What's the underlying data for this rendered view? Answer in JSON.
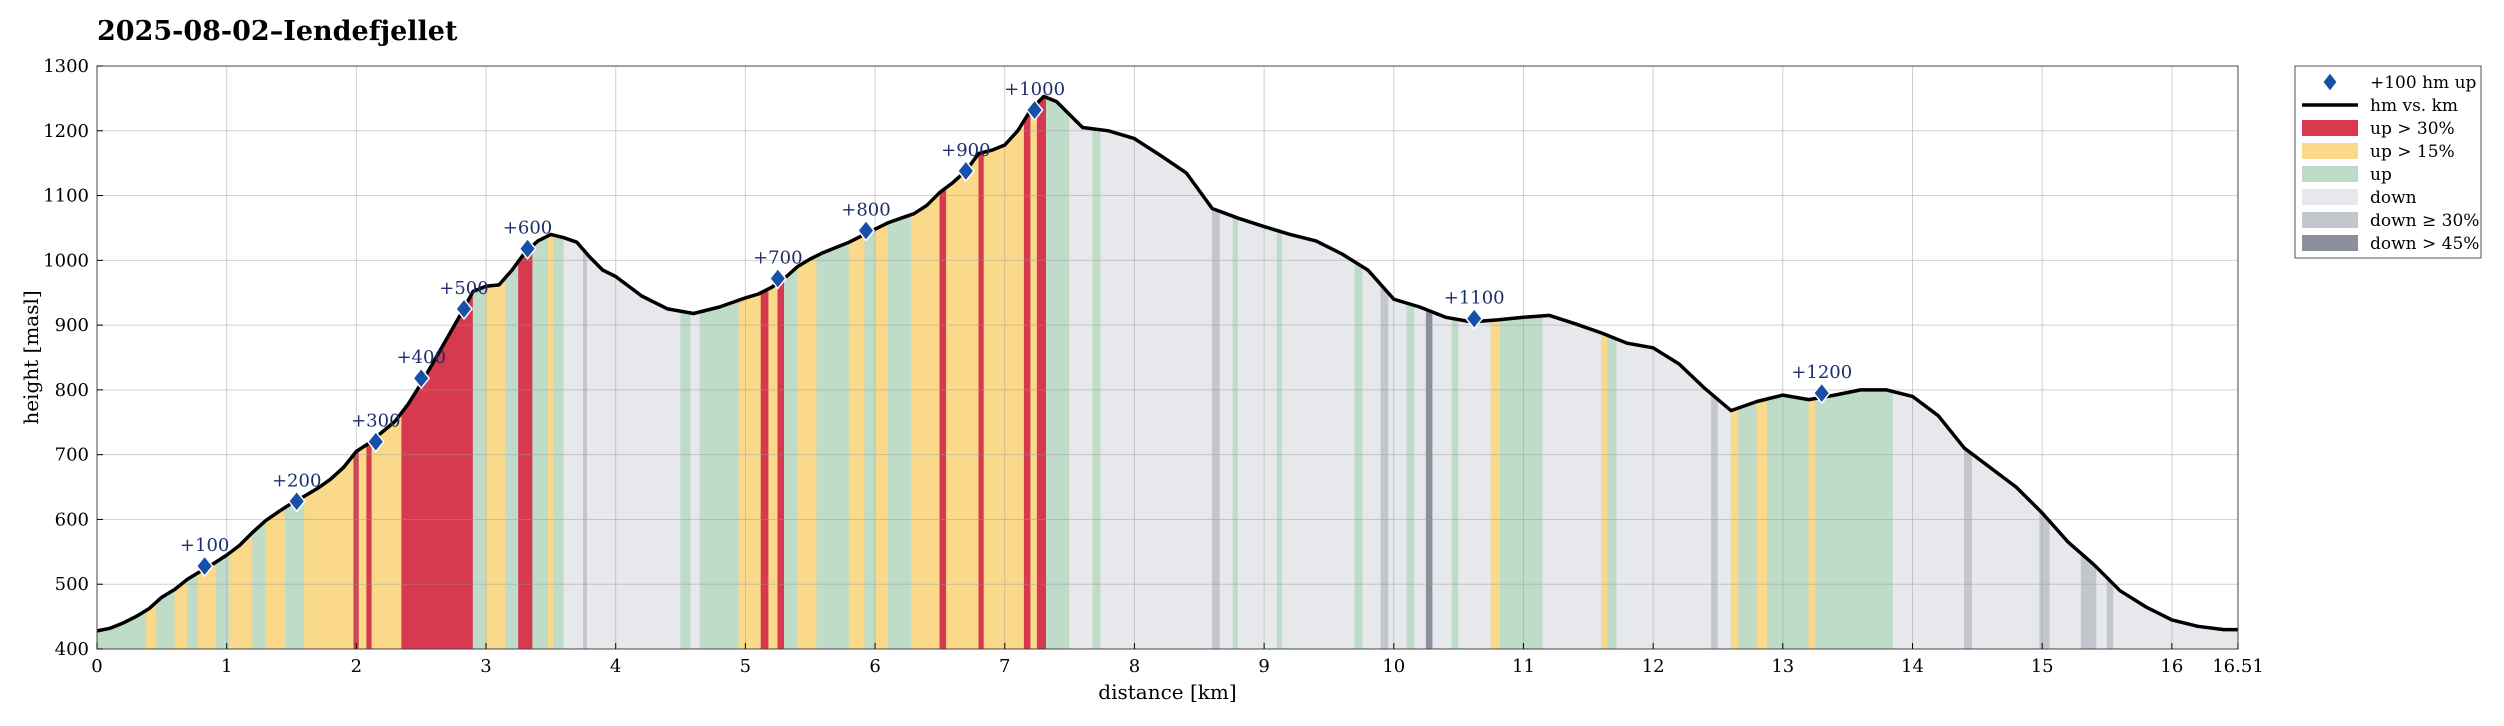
{
  "chart_data": {
    "type": "area",
    "title": "2025-08-02–Iendefjellet",
    "xlabel": "distance [km]",
    "ylabel": "height [masl]",
    "xlim": [
      0,
      16.51
    ],
    "ylim": [
      400,
      1300
    ],
    "grid": true,
    "legend_placement": "outside-top-right",
    "x_ticks": [
      "0",
      "1",
      "2",
      "3",
      "4",
      "5",
      "6",
      "7",
      "8",
      "9",
      "10",
      "11",
      "12",
      "13",
      "14",
      "15",
      "16",
      "16.51"
    ],
    "x_tick_values": [
      0,
      1,
      2,
      3,
      4,
      5,
      6,
      7,
      8,
      9,
      10,
      11,
      12,
      13,
      14,
      15,
      16,
      16.51
    ],
    "y_ticks": [
      400,
      500,
      600,
      700,
      800,
      900,
      1000,
      1100,
      1200,
      1300
    ],
    "legend": [
      {
        "key": "marker",
        "label": "+100 hm up",
        "color": "#1650a8"
      },
      {
        "key": "line",
        "label": "hm vs. km",
        "color": "#000000"
      },
      {
        "key": "up30",
        "label": "up > 30%",
        "color": "#d7394f"
      },
      {
        "key": "up15",
        "label": "up > 15%",
        "color": "#fbd98a"
      },
      {
        "key": "up",
        "label": "up",
        "color": "#bedcc8"
      },
      {
        "key": "down",
        "label": "down",
        "color": "#e6e8eb"
      },
      {
        "key": "down30",
        "label": "down ≥ 30%",
        "color": "#c3c6cd"
      },
      {
        "key": "down45",
        "label": "down > 45%",
        "color": "#8c909c"
      }
    ],
    "profile": {
      "x": [
        0,
        0.1,
        0.2,
        0.3,
        0.4,
        0.5,
        0.6,
        0.7,
        0.8,
        0.9,
        1.0,
        1.1,
        1.2,
        1.3,
        1.4,
        1.5,
        1.6,
        1.7,
        1.8,
        1.9,
        2.0,
        2.1,
        2.2,
        2.3,
        2.4,
        2.5,
        2.6,
        2.7,
        2.8,
        2.9,
        3.0,
        3.1,
        3.2,
        3.3,
        3.4,
        3.5,
        3.6,
        3.7,
        3.8,
        3.9,
        4.0,
        4.2,
        4.4,
        4.6,
        4.8,
        5.0,
        5.1,
        5.2,
        5.3,
        5.4,
        5.5,
        5.6,
        5.7,
        5.8,
        5.9,
        6.0,
        6.1,
        6.2,
        6.3,
        6.4,
        6.5,
        6.6,
        6.7,
        6.8,
        6.9,
        7.0,
        7.1,
        7.2,
        7.3,
        7.4,
        7.5,
        7.6,
        7.8,
        8.0,
        8.2,
        8.4,
        8.6,
        8.8,
        9.0,
        9.2,
        9.4,
        9.6,
        9.8,
        10.0,
        10.2,
        10.4,
        10.6,
        10.8,
        11.0,
        11.2,
        11.4,
        11.6,
        11.8,
        12.0,
        12.2,
        12.4,
        12.6,
        12.8,
        13.0,
        13.2,
        13.4,
        13.6,
        13.8,
        14.0,
        14.2,
        14.4,
        14.6,
        14.8,
        15.0,
        15.2,
        15.4,
        15.6,
        15.8,
        16.0,
        16.2,
        16.4,
        16.51
      ],
      "y": [
        428,
        432,
        440,
        450,
        462,
        480,
        492,
        508,
        520,
        532,
        545,
        560,
        580,
        598,
        612,
        625,
        636,
        648,
        662,
        680,
        705,
        718,
        735,
        752,
        778,
        810,
        845,
        880,
        915,
        952,
        960,
        962,
        985,
        1012,
        1030,
        1040,
        1035,
        1028,
        1005,
        985,
        975,
        945,
        925,
        918,
        928,
        942,
        948,
        958,
        972,
        990,
        1002,
        1012,
        1020,
        1028,
        1038,
        1048,
        1058,
        1065,
        1072,
        1085,
        1105,
        1120,
        1138,
        1165,
        1170,
        1178,
        1200,
        1232,
        1253,
        1245,
        1225,
        1205,
        1200,
        1188,
        1162,
        1135,
        1080,
        1065,
        1052,
        1040,
        1030,
        1010,
        985,
        940,
        928,
        912,
        905,
        908,
        912,
        915,
        902,
        888,
        872,
        865,
        840,
        802,
        768,
        782,
        792,
        785,
        792,
        800,
        800,
        790,
        760,
        710,
        680,
        650,
        610,
        565,
        530,
        490,
        465,
        445,
        435,
        430,
        430
      ],
      "bands": [
        {
          "from": 0,
          "to": 0.38,
          "type": "up"
        },
        {
          "from": 0.38,
          "to": 0.46,
          "type": "up15"
        },
        {
          "from": 0.46,
          "to": 0.6,
          "type": "up"
        },
        {
          "from": 0.6,
          "to": 0.7,
          "type": "up15"
        },
        {
          "from": 0.7,
          "to": 0.78,
          "type": "up"
        },
        {
          "from": 0.78,
          "to": 0.92,
          "type": "up15"
        },
        {
          "from": 0.92,
          "to": 1.02,
          "type": "up"
        },
        {
          "from": 1.02,
          "to": 1.2,
          "type": "up15"
        },
        {
          "from": 1.2,
          "to": 1.3,
          "type": "up"
        },
        {
          "from": 1.3,
          "to": 1.45,
          "type": "up15"
        },
        {
          "from": 1.45,
          "to": 1.6,
          "type": "up"
        },
        {
          "from": 1.6,
          "to": 1.98,
          "type": "up15"
        },
        {
          "from": 1.98,
          "to": 2.02,
          "type": "up30"
        },
        {
          "from": 2.02,
          "to": 2.08,
          "type": "up15"
        },
        {
          "from": 2.08,
          "to": 2.12,
          "type": "up30"
        },
        {
          "from": 2.12,
          "to": 2.35,
          "type": "up15"
        },
        {
          "from": 2.35,
          "to": 2.9,
          "type": "up30"
        },
        {
          "from": 2.9,
          "to": 3.0,
          "type": "up"
        },
        {
          "from": 3.0,
          "to": 3.15,
          "type": "up15"
        },
        {
          "from": 3.15,
          "to": 3.25,
          "type": "up"
        },
        {
          "from": 3.25,
          "to": 3.36,
          "type": "up30"
        },
        {
          "from": 3.36,
          "to": 3.48,
          "type": "up"
        },
        {
          "from": 3.48,
          "to": 3.52,
          "type": "up15"
        },
        {
          "from": 3.52,
          "to": 3.6,
          "type": "up"
        },
        {
          "from": 3.6,
          "to": 3.75,
          "type": "down"
        },
        {
          "from": 3.75,
          "to": 3.78,
          "type": "down30"
        },
        {
          "from": 3.78,
          "to": 4.5,
          "type": "down"
        },
        {
          "from": 4.5,
          "to": 4.58,
          "type": "up"
        },
        {
          "from": 4.58,
          "to": 4.65,
          "type": "down"
        },
        {
          "from": 4.65,
          "to": 4.95,
          "type": "up"
        },
        {
          "from": 4.95,
          "to": 5.12,
          "type": "up15"
        },
        {
          "from": 5.12,
          "to": 5.18,
          "type": "up30"
        },
        {
          "from": 5.18,
          "to": 5.25,
          "type": "up15"
        },
        {
          "from": 5.25,
          "to": 5.3,
          "type": "up30"
        },
        {
          "from": 5.3,
          "to": 5.4,
          "type": "up"
        },
        {
          "from": 5.4,
          "to": 5.55,
          "type": "up15"
        },
        {
          "from": 5.55,
          "to": 5.8,
          "type": "up"
        },
        {
          "from": 5.8,
          "to": 5.92,
          "type": "up15"
        },
        {
          "from": 5.92,
          "to": 6.0,
          "type": "up"
        },
        {
          "from": 6.0,
          "to": 6.1,
          "type": "up15"
        },
        {
          "from": 6.1,
          "to": 6.28,
          "type": "up"
        },
        {
          "from": 6.28,
          "to": 6.5,
          "type": "up15"
        },
        {
          "from": 6.5,
          "to": 6.55,
          "type": "up30"
        },
        {
          "from": 6.55,
          "to": 6.8,
          "type": "up15"
        },
        {
          "from": 6.8,
          "to": 6.84,
          "type": "up30"
        },
        {
          "from": 6.84,
          "to": 7.15,
          "type": "up15"
        },
        {
          "from": 7.15,
          "to": 7.2,
          "type": "up30"
        },
        {
          "from": 7.2,
          "to": 7.25,
          "type": "up15"
        },
        {
          "from": 7.25,
          "to": 7.32,
          "type": "up30"
        },
        {
          "from": 7.32,
          "to": 7.5,
          "type": "up"
        },
        {
          "from": 7.5,
          "to": 7.68,
          "type": "down"
        },
        {
          "from": 7.68,
          "to": 7.74,
          "type": "up"
        },
        {
          "from": 7.74,
          "to": 8.6,
          "type": "down"
        },
        {
          "from": 8.6,
          "to": 8.66,
          "type": "down30"
        },
        {
          "from": 8.66,
          "to": 8.76,
          "type": "down"
        },
        {
          "from": 8.76,
          "to": 8.8,
          "type": "up"
        },
        {
          "from": 8.8,
          "to": 9.1,
          "type": "down"
        },
        {
          "from": 9.1,
          "to": 9.14,
          "type": "up"
        },
        {
          "from": 9.14,
          "to": 9.7,
          "type": "down"
        },
        {
          "from": 9.7,
          "to": 9.76,
          "type": "up"
        },
        {
          "from": 9.76,
          "to": 9.9,
          "type": "down"
        },
        {
          "from": 9.9,
          "to": 9.96,
          "type": "down30"
        },
        {
          "from": 9.96,
          "to": 10.1,
          "type": "down"
        },
        {
          "from": 10.1,
          "to": 10.16,
          "type": "up"
        },
        {
          "from": 10.16,
          "to": 10.25,
          "type": "down"
        },
        {
          "from": 10.25,
          "to": 10.3,
          "type": "down45"
        },
        {
          "from": 10.3,
          "to": 10.45,
          "type": "down"
        },
        {
          "from": 10.45,
          "to": 10.5,
          "type": "up"
        },
        {
          "from": 10.5,
          "to": 10.75,
          "type": "down"
        },
        {
          "from": 10.75,
          "to": 10.82,
          "type": "up15"
        },
        {
          "from": 10.82,
          "to": 10.9,
          "type": "up"
        },
        {
          "from": 10.9,
          "to": 11.0,
          "type": "up"
        },
        {
          "from": 11.0,
          "to": 11.05,
          "type": "up"
        },
        {
          "from": 11.05,
          "to": 11.15,
          "type": "up"
        },
        {
          "from": 11.15,
          "to": 11.6,
          "type": "down"
        },
        {
          "from": 11.6,
          "to": 11.65,
          "type": "up15"
        },
        {
          "from": 11.65,
          "to": 11.72,
          "type": "up"
        },
        {
          "from": 11.72,
          "to": 12.45,
          "type": "down"
        },
        {
          "from": 12.45,
          "to": 12.5,
          "type": "down30"
        },
        {
          "from": 12.5,
          "to": 12.6,
          "type": "down"
        },
        {
          "from": 12.6,
          "to": 12.66,
          "type": "up15"
        },
        {
          "from": 12.66,
          "to": 12.8,
          "type": "up"
        },
        {
          "from": 12.8,
          "to": 12.88,
          "type": "up15"
        },
        {
          "from": 12.88,
          "to": 13.2,
          "type": "up"
        },
        {
          "from": 13.2,
          "to": 13.25,
          "type": "up15"
        },
        {
          "from": 13.25,
          "to": 13.85,
          "type": "up"
        },
        {
          "from": 13.85,
          "to": 14.4,
          "type": "down"
        },
        {
          "from": 14.4,
          "to": 14.46,
          "type": "down30"
        },
        {
          "from": 14.46,
          "to": 14.98,
          "type": "down"
        },
        {
          "from": 14.98,
          "to": 15.06,
          "type": "down30"
        },
        {
          "from": 15.06,
          "to": 15.3,
          "type": "down"
        },
        {
          "from": 15.3,
          "to": 15.42,
          "type": "down30"
        },
        {
          "from": 15.42,
          "to": 15.5,
          "type": "down"
        },
        {
          "from": 15.5,
          "to": 15.55,
          "type": "down30"
        },
        {
          "from": 15.55,
          "to": 16.51,
          "type": "down"
        }
      ]
    },
    "markers": [
      {
        "x": 0.83,
        "y": 528,
        "label": "+100"
      },
      {
        "x": 1.54,
        "y": 628,
        "label": "+200"
      },
      {
        "x": 2.15,
        "y": 720,
        "label": "+300"
      },
      {
        "x": 2.5,
        "y": 818,
        "label": "+400"
      },
      {
        "x": 2.83,
        "y": 925,
        "label": "+500"
      },
      {
        "x": 3.32,
        "y": 1018,
        "label": "+600"
      },
      {
        "x": 5.25,
        "y": 972,
        "label": "+700"
      },
      {
        "x": 5.93,
        "y": 1046,
        "label": "+800"
      },
      {
        "x": 6.7,
        "y": 1138,
        "label": "+900"
      },
      {
        "x": 7.23,
        "y": 1232,
        "label": "+1000"
      },
      {
        "x": 10.62,
        "y": 910,
        "label": "+1100"
      },
      {
        "x": 13.3,
        "y": 795,
        "label": "+1200"
      }
    ]
  }
}
